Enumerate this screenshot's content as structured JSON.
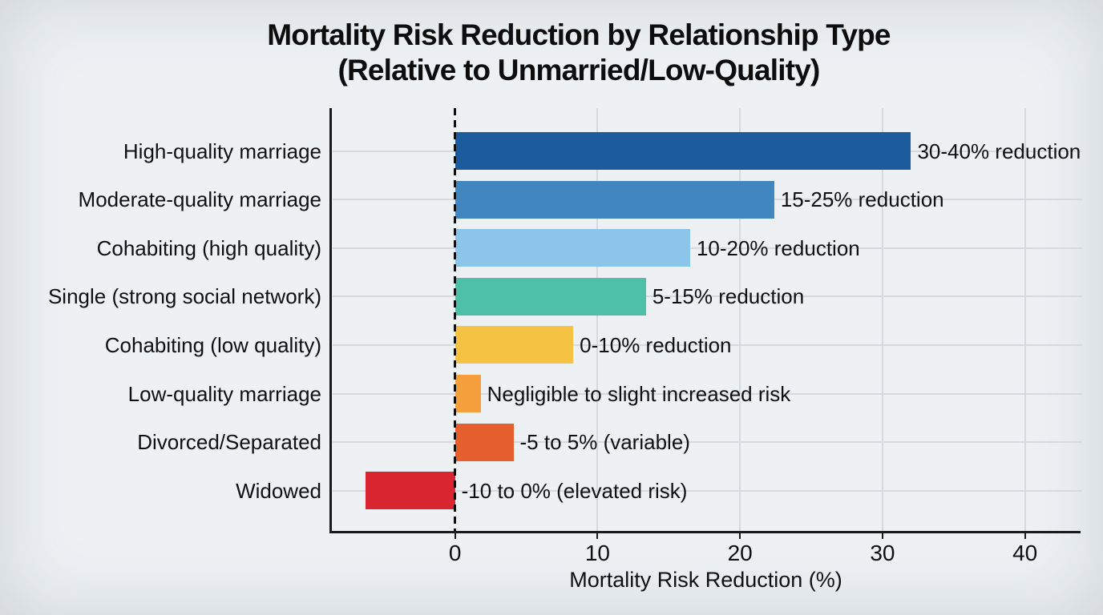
{
  "chart_data": {
    "type": "bar",
    "orientation": "horizontal",
    "title": "Mortality Risk Reduction by Relationship Type (Relative to Unmarried/Low-Quality)",
    "title_line1": "Mortality Risk Reduction by Relationship Type",
    "title_line2": "(Relative to Unmarried/Low-Quality)",
    "xlabel": "Mortality Risk Reduction (%)",
    "xlim": [
      -8.7,
      43.9
    ],
    "xticks": [
      0,
      10,
      20,
      30,
      40
    ],
    "grid": true,
    "legend": "none",
    "zero_reference_line": {
      "x": 0,
      "style": "dashed",
      "color": "#101010"
    },
    "categories": [
      "High-quality marriage",
      "Moderate-quality marriage",
      "Cohabiting (high quality)",
      "Single (strong social network)",
      "Cohabiting (low quality)",
      "Low-quality marriage",
      "Divorced/Separated",
      "Widowed"
    ],
    "values": [
      32,
      22.4,
      16.5,
      13.4,
      8.3,
      1.8,
      4.1,
      -6.3
    ],
    "bar_labels": [
      "30-40% reduction",
      "15-25% reduction",
      "10-20% reduction",
      "5-15% reduction",
      "0-10% reduction",
      "Negligible to slight increased risk",
      "-5 to 5% (variable)",
      "-10 to 0% (elevated risk)"
    ],
    "bar_colors": [
      "#1d5c9c",
      "#4286bf",
      "#8cc5ea",
      "#4fc0a8",
      "#f6c244",
      "#f5a03c",
      "#e6602f",
      "#d8252f"
    ],
    "background_color": "#edf1f4",
    "grid_color": "#d6dade",
    "text_color": "#101010",
    "spine_color": "#1a1a1a"
  }
}
